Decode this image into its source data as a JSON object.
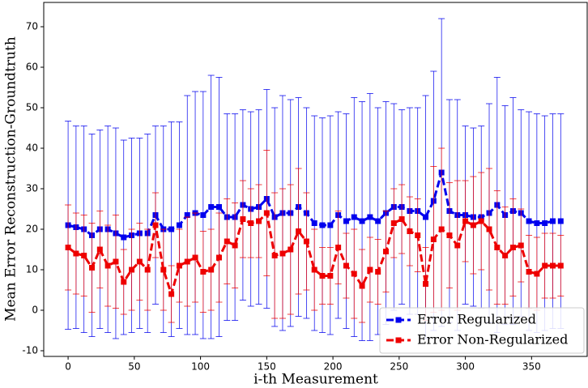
{
  "chart_data": {
    "type": "errorbar",
    "xlabel": "i-th Measurement",
    "ylabel": "Mean Error Reconstruction-Groundtruth",
    "x": [
      0,
      6,
      12,
      18,
      24,
      30,
      36,
      42,
      48,
      54,
      60,
      66,
      72,
      78,
      84,
      90,
      96,
      102,
      108,
      114,
      120,
      126,
      132,
      138,
      144,
      150,
      156,
      162,
      168,
      174,
      180,
      186,
      192,
      198,
      204,
      210,
      216,
      222,
      228,
      234,
      240,
      246,
      252,
      258,
      264,
      270,
      276,
      282,
      288,
      294,
      300,
      306,
      312,
      318,
      324,
      330,
      336,
      342,
      348,
      354,
      360,
      366,
      372
    ],
    "series": [
      {
        "name": "Error Regularized",
        "color": "#0000ee",
        "values": [
          21,
          20.5,
          20,
          18.5,
          20,
          20,
          19,
          18,
          18.5,
          19,
          19,
          23.5,
          20,
          20,
          21,
          23.5,
          24,
          23.5,
          25.5,
          25.5,
          23,
          23,
          26,
          25,
          25.5,
          27.5,
          23,
          24,
          24,
          25.5,
          24,
          21.5,
          21,
          21,
          23.5,
          22,
          23,
          22,
          23,
          22,
          24,
          25.5,
          25.5,
          24.5,
          24.5,
          23,
          27,
          34,
          24.5,
          23.5,
          23.5,
          23,
          23,
          24,
          26,
          23.5,
          24.5,
          24,
          22,
          21.5,
          21.5,
          22,
          22
        ],
        "errors": [
          25.7,
          25,
          25.5,
          25,
          24.5,
          25.5,
          26,
          24,
          24,
          23.5,
          24.5,
          22,
          25.5,
          26.5,
          25.5,
          29.5,
          30,
          30.5,
          32.5,
          32,
          25.5,
          25.5,
          23.5,
          24,
          24,
          27,
          27,
          29,
          28,
          27,
          26,
          26.5,
          26.5,
          27,
          25.5,
          26.5,
          29.5,
          29.5,
          30.5,
          28,
          27.5,
          25.5,
          24,
          25.5,
          25.5,
          30,
          32,
          38,
          27.5,
          28.5,
          22,
          22,
          22.5,
          27,
          31.5,
          27,
          28,
          25.5,
          27,
          27,
          26.5,
          26.5,
          26.5
        ]
      },
      {
        "name": "Error Non-Regularized",
        "color": "#ee0000",
        "values": [
          15.5,
          14,
          13.5,
          10.5,
          15,
          11,
          12,
          7,
          10,
          12,
          10,
          21,
          10,
          4,
          11,
          12,
          13,
          9.5,
          10,
          13,
          17,
          16,
          22.5,
          21.5,
          22,
          24,
          13.5,
          14,
          15,
          19.5,
          17,
          10,
          8.5,
          8.5,
          15.5,
          11,
          9,
          6,
          10,
          9.5,
          14.5,
          21.5,
          22.5,
          19.5,
          18.5,
          6.5,
          17.5,
          20,
          18.5,
          16,
          22,
          21,
          22,
          20,
          15.5,
          13.5,
          15.5,
          16,
          9.5,
          9,
          11,
          11,
          11
        ],
        "errors": [
          10.5,
          10,
          10,
          11,
          9.5,
          10,
          11.5,
          8,
          10,
          9.5,
          10,
          8,
          10,
          7,
          9,
          11,
          11,
          10,
          10,
          11,
          10.5,
          10.5,
          9.5,
          8.5,
          9,
          15.5,
          15.5,
          16,
          16,
          15.5,
          12,
          10,
          7,
          7,
          9,
          8,
          11,
          9,
          8,
          8,
          10,
          8.5,
          8.5,
          8.5,
          9,
          9,
          18,
          20,
          13,
          16,
          10,
          12,
          12,
          15,
          14,
          12,
          12,
          9,
          9,
          9,
          8,
          8,
          7.5
        ]
      }
    ],
    "xlim": [
      -18.4,
      392
    ],
    "xticks": [
      0,
      50,
      100,
      150,
      200,
      250,
      300,
      350
    ],
    "ylim": [
      -11.4,
      76
    ],
    "yticks": [
      -10,
      0,
      10,
      20,
      30,
      40,
      50,
      60,
      70
    ],
    "legend": "lower right"
  }
}
